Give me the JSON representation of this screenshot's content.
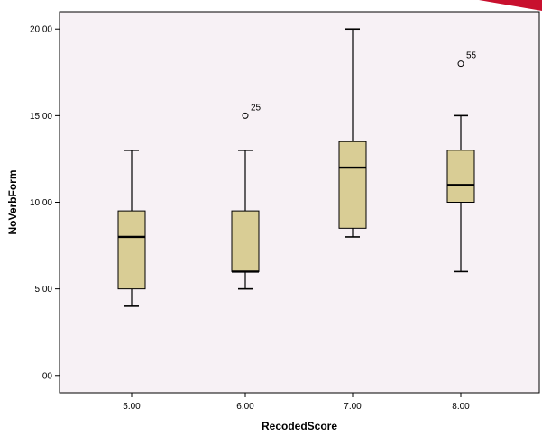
{
  "chart_data": {
    "type": "boxplot",
    "xlabel": "RecodedScore",
    "ylabel": "NoVerbForm",
    "ylim": [
      -1,
      21
    ],
    "yticks": [
      ".00",
      "5.00",
      "10.00",
      "15.00",
      "20.00"
    ],
    "ytick_values": [
      0,
      5,
      10,
      15,
      20
    ],
    "categories": [
      "5.00",
      "6.00",
      "7.00",
      "8.00"
    ],
    "boxes": [
      {
        "category": "5.00",
        "min": 4,
        "q1": 5,
        "median": 8,
        "q3": 9.5,
        "max": 13,
        "outliers": []
      },
      {
        "category": "6.00",
        "min": 5,
        "q1": 6,
        "median": 6,
        "q3": 9.5,
        "max": 13,
        "outliers": [
          {
            "value": 15,
            "label": "25"
          }
        ]
      },
      {
        "category": "7.00",
        "min": 8,
        "q1": 8.5,
        "median": 12,
        "q3": 13.5,
        "max": 20,
        "outliers": []
      },
      {
        "category": "8.00",
        "min": 6,
        "q1": 10,
        "median": 11,
        "q3": 13,
        "max": 15,
        "outliers": [
          {
            "value": 18,
            "label": "55"
          }
        ]
      }
    ],
    "colors": {
      "plot_background": "#f7f1f5",
      "box_fill": "#d9cd95",
      "stroke": "#000000"
    }
  }
}
